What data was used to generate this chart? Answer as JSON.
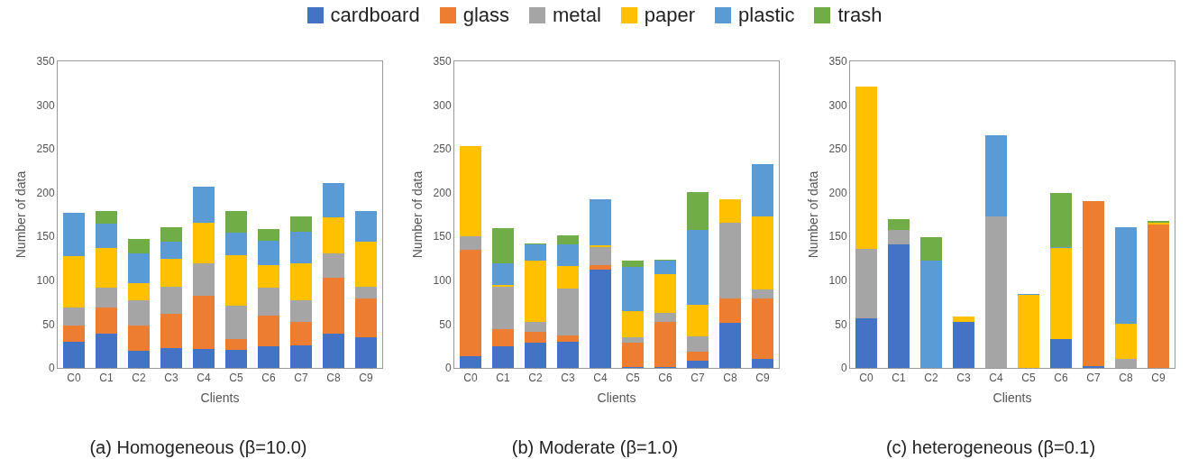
{
  "chart_data": [
    {
      "type": "bar",
      "stacked": true,
      "title": "(a) Homogeneous (β=10.0)",
      "xlabel": "Clients",
      "ylabel": "Number of data",
      "categories": [
        "C0",
        "C1",
        "C2",
        "C3",
        "C4",
        "C5",
        "C6",
        "C7",
        "C8",
        "C9"
      ],
      "ylim": [
        0,
        350
      ],
      "yticks": [
        0,
        50,
        100,
        150,
        200,
        250,
        300,
        350
      ],
      "grid": false,
      "legend": "top",
      "series": [
        {
          "name": "cardboard",
          "color": "#4472c4",
          "values": [
            30,
            39,
            20,
            23,
            22,
            21,
            25,
            26,
            39,
            35
          ]
        },
        {
          "name": "glass",
          "color": "#ed7d31",
          "values": [
            18,
            30,
            28,
            39,
            60,
            12,
            35,
            26,
            64,
            44
          ]
        },
        {
          "name": "metal",
          "color": "#a5a5a5",
          "values": [
            21,
            23,
            29,
            31,
            37,
            38,
            32,
            25,
            28,
            14
          ]
        },
        {
          "name": "paper",
          "color": "#ffc000",
          "values": [
            59,
            45,
            20,
            32,
            47,
            58,
            25,
            42,
            41,
            51
          ]
        },
        {
          "name": "plastic",
          "color": "#5b9bd5",
          "values": [
            49,
            28,
            34,
            19,
            41,
            25,
            28,
            36,
            39,
            35
          ]
        },
        {
          "name": "trash",
          "color": "#70ad47",
          "values": [
            0,
            14,
            16,
            17,
            0,
            25,
            14,
            18,
            0,
            0
          ]
        }
      ]
    },
    {
      "type": "bar",
      "stacked": true,
      "title": "(b) Moderate (β=1.0)",
      "xlabel": "Clients",
      "ylabel": "Number of data",
      "categories": [
        "C0",
        "C1",
        "C2",
        "C3",
        "C4",
        "C5",
        "C6",
        "C7",
        "C8",
        "C9"
      ],
      "ylim": [
        0,
        350
      ],
      "yticks": [
        0,
        50,
        100,
        150,
        200,
        250,
        300,
        350
      ],
      "grid": false,
      "legend": false,
      "series": [
        {
          "color": "#4472c4",
          "values": [
            13,
            25,
            29,
            30,
            112,
            1,
            1,
            8,
            51,
            10
          ]
        },
        {
          "color": "#ed7d31",
          "values": [
            122,
            19,
            12,
            7,
            5,
            28,
            51,
            11,
            28,
            69
          ]
        },
        {
          "color": "#a5a5a5",
          "values": [
            15,
            49,
            11,
            54,
            21,
            6,
            11,
            17,
            87,
            11
          ]
        },
        {
          "color": "#ffc000",
          "values": [
            103,
            2,
            71,
            25,
            2,
            30,
            44,
            36,
            26,
            83
          ]
        },
        {
          "color": "#5b9bd5",
          "values": [
            0,
            24,
            18,
            25,
            53,
            50,
            15,
            86,
            0,
            60
          ]
        },
        {
          "color": "#70ad47",
          "values": [
            0,
            41,
            1,
            10,
            0,
            8,
            2,
            43,
            0,
            0
          ]
        }
      ]
    },
    {
      "type": "bar",
      "stacked": true,
      "title": "(c) heterogeneous (β=0.1)",
      "xlabel": "Clients",
      "ylabel": "Number of data",
      "categories": [
        "C0",
        "C1",
        "C2",
        "C3",
        "C4",
        "C5",
        "C6",
        "C7",
        "C8",
        "C9"
      ],
      "ylim": [
        0,
        350
      ],
      "yticks": [
        0,
        50,
        100,
        150,
        200,
        250,
        300,
        350
      ],
      "grid": false,
      "legend": false,
      "series": [
        {
          "color": "#4472c4",
          "values": [
            57,
            141,
            0,
            53,
            0,
            0,
            33,
            2,
            0,
            0
          ]
        },
        {
          "color": "#ed7d31",
          "values": [
            0,
            0,
            0,
            0,
            0,
            0,
            0,
            188,
            0,
            164
          ]
        },
        {
          "color": "#a5a5a5",
          "values": [
            79,
            16,
            0,
            0,
            173,
            0,
            0,
            0,
            10,
            0
          ]
        },
        {
          "color": "#ffc000",
          "values": [
            185,
            0,
            0,
            6,
            0,
            83,
            104,
            0,
            40,
            2
          ]
        },
        {
          "color": "#5b9bd5",
          "values": [
            0,
            0,
            123,
            0,
            93,
            1,
            1,
            0,
            111,
            0
          ]
        },
        {
          "color": "#70ad47",
          "values": [
            0,
            13,
            26,
            0,
            0,
            0,
            62,
            0,
            0,
            2
          ]
        }
      ]
    }
  ]
}
